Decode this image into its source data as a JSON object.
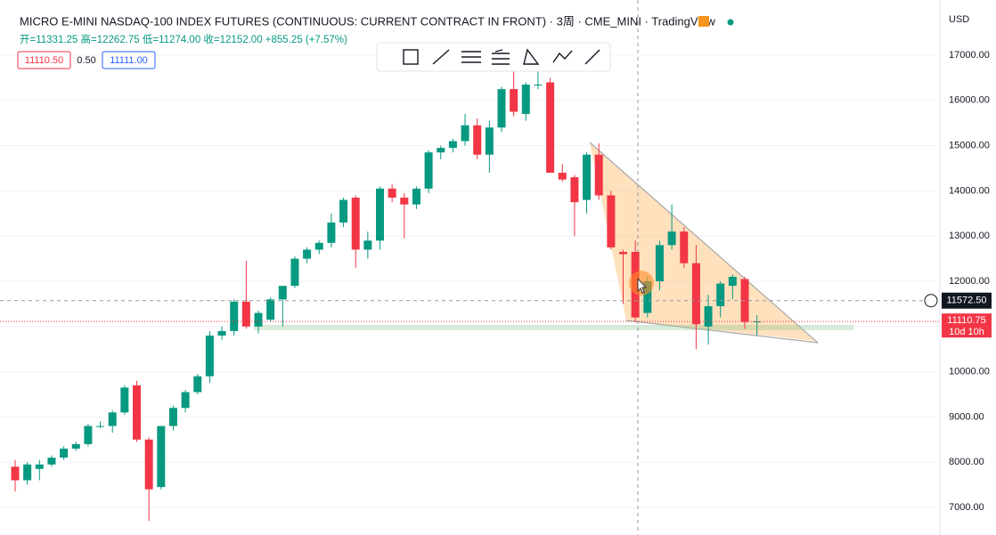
{
  "chart_data": {
    "type": "candlestick",
    "title": "MICRO E-MINI NASDAQ-100 INDEX FUTURES (CONTINUOUS: CURRENT CONTRACT IN FRONT) · 3周 · CME_MINI · TradingView",
    "ohlc_text": "开=11331.25 高=12262.75 低=11274.00 收=12152.00 +855.25 (+7.57%)",
    "bid": "11110.50",
    "spread": "0.50",
    "ask": "11111.00",
    "currency": "USD",
    "up_color": "#089981",
    "down_color": "#f23645",
    "open": [
      7900,
      7600,
      7850,
      7950,
      8100,
      8300,
      8400,
      8800,
      8800,
      9100,
      9700,
      8500,
      7450,
      8800,
      9200,
      9550,
      9900,
      10800,
      10900,
      11550,
      11000,
      11150,
      11600,
      11900,
      12500,
      12700,
      12850,
      13300,
      13850,
      12700,
      12900,
      14050,
      13850,
      13700,
      14050,
      14850,
      14950,
      15100,
      15450,
      14800,
      15400,
      16250,
      15700,
      16350,
      16400,
      14400,
      14300,
      13800,
      14800,
      13900,
      12650,
      12650,
      11300,
      12000,
      12800,
      13100,
      12400,
      11000,
      11450,
      11900,
      12050,
      11100
    ],
    "high": [
      8050,
      8000,
      8050,
      8150,
      8350,
      8450,
      8850,
      8900,
      9150,
      9700,
      9800,
      8550,
      8800,
      9250,
      9600,
      9950,
      10900,
      11000,
      11600,
      12450,
      11350,
      11650,
      11900,
      12550,
      12750,
      12900,
      13500,
      13850,
      13900,
      13100,
      14100,
      14150,
      13950,
      14100,
      14900,
      15000,
      15150,
      15700,
      15600,
      15550,
      16300,
      16700,
      16400,
      16900,
      16500,
      14600,
      14350,
      14850,
      15050,
      14000,
      12700,
      12900,
      12100,
      12900,
      13700,
      13200,
      12800,
      11700,
      12000,
      12150,
      12100,
      11250
    ],
    "low": [
      7350,
      7500,
      7600,
      7900,
      8050,
      8250,
      8350,
      8750,
      8650,
      9050,
      8450,
      6700,
      7400,
      8700,
      9100,
      9500,
      9750,
      10700,
      10800,
      10950,
      10850,
      11100,
      11000,
      11850,
      12400,
      12600,
      12750,
      13200,
      12300,
      12500,
      12700,
      13750,
      12950,
      13600,
      13950,
      14700,
      14850,
      15000,
      14700,
      14400,
      15300,
      15650,
      15550,
      16250,
      14400,
      14200,
      13000,
      13500,
      13800,
      12700,
      11500,
      11100,
      11200,
      11800,
      12700,
      12300,
      10500,
      10600,
      11200,
      11600,
      10950,
      10800
    ],
    "close": [
      7600,
      7950,
      7950,
      8100,
      8300,
      8400,
      8800,
      8800,
      9100,
      9650,
      8500,
      7400,
      8800,
      9200,
      9550,
      9900,
      10800,
      10900,
      11550,
      11000,
      11300,
      11600,
      11900,
      12500,
      12700,
      12850,
      13300,
      13800,
      12700,
      12900,
      14050,
      13850,
      13700,
      14050,
      14850,
      14950,
      15100,
      15450,
      14800,
      15400,
      16250,
      15750,
      16350,
      16350,
      14400,
      14250,
      13750,
      14800,
      13900,
      12750,
      12600,
      11200,
      12000,
      12800,
      13100,
      12400,
      11050,
      11450,
      11950,
      12100,
      11100,
      11110.75
    ],
    "ylim": [
      7000,
      17000
    ],
    "yticks": [
      {
        "value": 7000,
        "label": "7000.00"
      },
      {
        "value": 8000,
        "label": "8000.00"
      },
      {
        "value": 9000,
        "label": "9000.00"
      },
      {
        "value": 10000,
        "label": "10000.00"
      },
      {
        "value": 11000,
        "label": "11000.00"
      },
      {
        "value": 12000,
        "label": "12000.00"
      },
      {
        "value": 13000,
        "label": "13000.00"
      },
      {
        "value": 14000,
        "label": "14000.00"
      },
      {
        "value": 15000,
        "label": "15000.00"
      },
      {
        "value": 16000,
        "label": "16000.00"
      },
      {
        "value": 17000,
        "label": "17000.00"
      }
    ],
    "crosshair_price": {
      "value": 11572.5,
      "label": "11572.50"
    },
    "last_price": {
      "value": 11110.75,
      "label": "11110.75"
    },
    "countdown": "10d 10h"
  }
}
